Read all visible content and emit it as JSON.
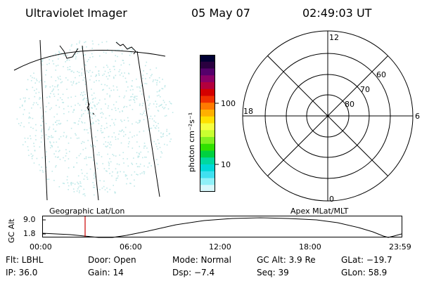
{
  "header": {
    "instrument": "Ultraviolet Imager",
    "date": "05 May 07",
    "time": "02:49:03 UT"
  },
  "colorbar": {
    "unit_label": "photon cm⁻²s⁻¹",
    "tick_labels": [
      "100",
      "10"
    ],
    "colors": [
      "#000033",
      "#2a0040",
      "#55006b",
      "#8a0066",
      "#b3003d",
      "#d40000",
      "#f03000",
      "#ff7a00",
      "#ffb000",
      "#ffe000",
      "#f5ff40",
      "#c8ff30",
      "#80f020",
      "#30e000",
      "#00d040",
      "#00d8a0",
      "#00d8d8",
      "#40e0f0",
      "#90f0f8",
      "#d8f8fc"
    ]
  },
  "left_map": {
    "projection_label": "Geographic Lat/Lon",
    "speckle_color": "#bfe8e8"
  },
  "polar_plot": {
    "projection_label": "Apex MLat/MLT",
    "mlt_labels": {
      "top": "12",
      "right": "6",
      "bottom": "0",
      "left": "18"
    },
    "lat_labels": [
      "60",
      "70",
      "80"
    ]
  },
  "altitude_plot": {
    "axis_label": "GC Alt",
    "y_ticks": [
      "9.0",
      "1.8"
    ],
    "x_ticks": [
      "00:00",
      "06:00",
      "12:00",
      "18:00",
      "23:59"
    ],
    "marker_color": "#cc0000"
  },
  "status": {
    "flt": "Flt: LBHL",
    "door": "Door: Open",
    "mode": "Mode: Normal",
    "gc_alt": "GC Alt: 3.9 Re",
    "glat": "GLat: −19.7",
    "ip": "IP: 36.0",
    "gain": "Gain: 14",
    "dsp": "Dsp:   −7.4",
    "seq": "Seq: 39",
    "glon": "GLon:  58.9"
  }
}
